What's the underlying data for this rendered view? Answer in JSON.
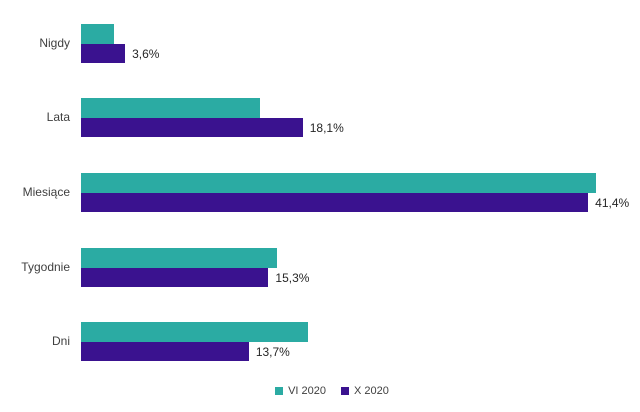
{
  "chart_data": {
    "type": "bar",
    "orientation": "horizontal",
    "title": "",
    "xlabel": "",
    "ylabel": "",
    "categories": [
      "Nigdy",
      "Lata",
      "Miesiące",
      "Tygodnie",
      "Dni"
    ],
    "series": [
      {
        "name": "VI 2020",
        "color": "#2BABA3",
        "values": [
          2.7,
          14.6,
          42.0,
          16.0,
          18.5
        ],
        "labels": [
          "",
          "",
          "",
          "",
          ""
        ]
      },
      {
        "name": "X 2020",
        "color": "#3A128F",
        "values": [
          3.6,
          18.1,
          41.4,
          15.3,
          13.7
        ],
        "labels": [
          "3,6%",
          "18,1%",
          "41,4%",
          "15,3%",
          "13,7%"
        ]
      }
    ],
    "value_axis": {
      "unit": "%",
      "min": 0,
      "axis_visible": false
    },
    "grid": false,
    "legend_position": "bottom-center"
  },
  "text_color": "#3f3f3f",
  "background_color": "#ffffff"
}
